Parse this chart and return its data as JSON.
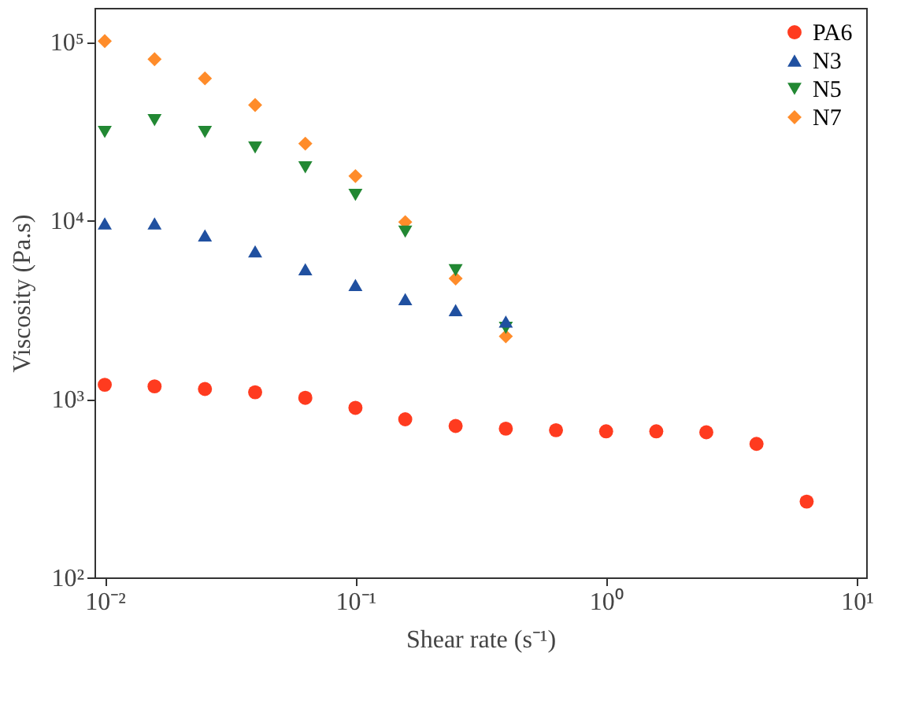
{
  "chart_data": {
    "type": "scatter",
    "xlabel": "Shear rate (s⁻¹)",
    "ylabel": "Viscosity (Pa.s)",
    "log": "xy",
    "grid": false,
    "legend": "top right",
    "xlim": [
      0.0091,
      10.9
    ],
    "ylim": [
      100,
      155000
    ],
    "xticks": [
      {
        "value": 0.01,
        "label": "10⁻²"
      },
      {
        "value": 0.1,
        "label": "10⁻¹"
      },
      {
        "value": 1,
        "label": "10⁰"
      },
      {
        "value": 10,
        "label": "10¹"
      }
    ],
    "yticks": [
      {
        "value": 100,
        "label": "10²"
      },
      {
        "value": 1000,
        "label": "10³"
      },
      {
        "value": 10000,
        "label": "10⁴"
      },
      {
        "value": 100000,
        "label": "10⁵"
      }
    ],
    "x": [
      0.01,
      0.0158,
      0.0251,
      0.0398,
      0.0631,
      0.1,
      0.158,
      0.251,
      0.398,
      0.631,
      1,
      1.585,
      2.51,
      3.98,
      6.31
    ],
    "series": [
      {
        "name": "PA6",
        "color": "#ff3b1f",
        "marker": "circle",
        "values": [
          1200,
          1175,
          1136,
          1090,
          1014,
          891,
          769,
          705,
          681,
          668,
          658,
          658,
          650,
          560,
          266
        ]
      },
      {
        "name": "N3",
        "color": "#2050a0",
        "marker": "triangle",
        "values": [
          9620,
          9620,
          8240,
          6700,
          5320,
          4350,
          3620,
          3140,
          2710,
          null,
          null,
          null,
          null,
          null,
          null
        ]
      },
      {
        "name": "N5",
        "color": "#228833",
        "marker": "triangle_down",
        "values": [
          31300,
          36400,
          31300,
          25600,
          19800,
          13900,
          8650,
          5260,
          2500,
          null,
          null,
          null,
          null,
          null,
          null
        ]
      },
      {
        "name": "N7",
        "color": "#ff8c2a",
        "marker": "diamond",
        "values": [
          101000,
          80000,
          62400,
          44300,
          26900,
          17700,
          9780,
          4720,
          2240,
          null,
          null,
          null,
          null,
          null,
          null
        ]
      }
    ]
  }
}
